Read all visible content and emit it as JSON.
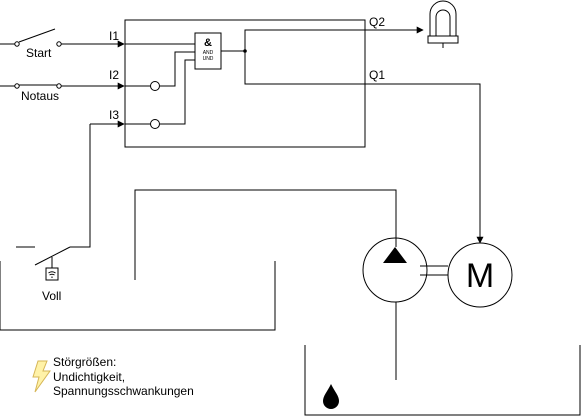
{
  "inputs": {
    "start_label": "Start",
    "notaus_label": "Notaus",
    "voll_label": "Voll",
    "i1": "I1",
    "i2": "I2",
    "i3": "I3"
  },
  "outputs": {
    "q1": "Q1",
    "q2": "Q2"
  },
  "gate": {
    "symbol": "&",
    "line1": "AND",
    "line2": "UND"
  },
  "motor": {
    "label": "M"
  },
  "disturbances": {
    "line1": "Störgrößen:",
    "line2": "Undichtigkeit,",
    "line3": "Spannungsschwankungen"
  },
  "colors": {
    "line": "#000000",
    "lightning_fill": "#fff2a8",
    "lightning_stroke": "#d6b656"
  },
  "icons": {
    "lamp": "lamp-icon",
    "pump": "pump-icon",
    "motor": "motor-icon",
    "drop": "water-drop-icon",
    "lightning": "lightning-icon",
    "float_sensor": "float-sensor-icon"
  }
}
